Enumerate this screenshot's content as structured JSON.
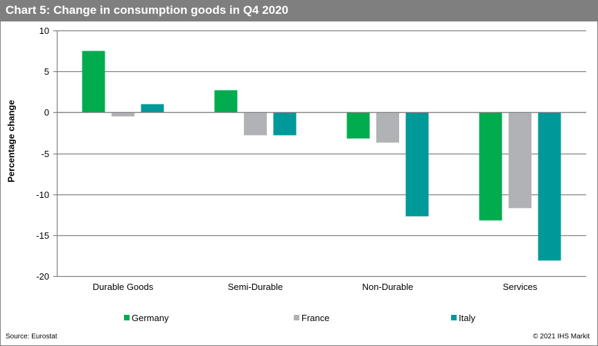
{
  "header": {
    "title": "Chart 5: Change in consumption goods in Q4 2020"
  },
  "footer": {
    "source": "Source: Eurostat",
    "copyright": "© 2021  IHS Markit"
  },
  "chart_data": {
    "type": "bar",
    "title": "Chart 5: Change in consumption goods in Q4 2020",
    "xlabel": "",
    "ylabel": "Percentage change",
    "ylim": [
      -20,
      10
    ],
    "yticks": [
      10,
      5,
      0,
      -5,
      -10,
      -15,
      -20
    ],
    "ytick_labels": [
      "10",
      "5",
      "0",
      "-5",
      "-10",
      "-15",
      "-20"
    ],
    "grid": true,
    "legend_position": "bottom",
    "categories": [
      "Durable Goods",
      "Semi-Durable",
      "Non-Durable",
      "Services"
    ],
    "series": [
      {
        "name": "Germany",
        "color": "#00ac4e",
        "values": [
          7.5,
          2.7,
          -3.2,
          -13.2
        ]
      },
      {
        "name": "France",
        "color": "#b1b2b6",
        "values": [
          -0.5,
          -2.8,
          -3.7,
          -11.7
        ]
      },
      {
        "name": "Italy",
        "color": "#009999",
        "values": [
          1.0,
          -2.8,
          -12.7,
          -18.1
        ]
      }
    ]
  }
}
